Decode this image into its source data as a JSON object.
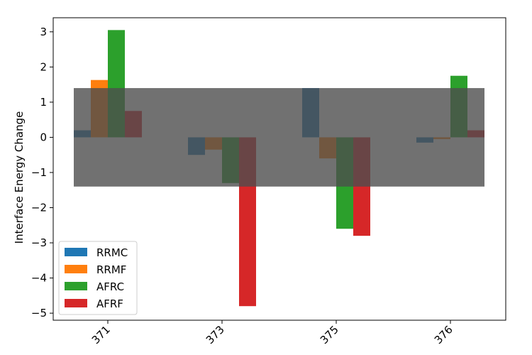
{
  "chart_data": {
    "type": "bar",
    "title": "",
    "xlabel": "",
    "ylabel": "Interface Energy Change",
    "categories": [
      "371",
      "373",
      "375",
      "376"
    ],
    "series": [
      {
        "name": "RRMC",
        "color": "#1f77b4",
        "values": [
          0.2,
          -0.5,
          1.4,
          -0.15
        ]
      },
      {
        "name": "RRMF",
        "color": "#ff7f0e",
        "values": [
          1.63,
          -0.35,
          -0.6,
          -0.05
        ]
      },
      {
        "name": "AFRC",
        "color": "#2ca02c",
        "values": [
          3.05,
          -1.3,
          -2.6,
          1.75
        ]
      },
      {
        "name": "AFRF",
        "color": "#d62728",
        "values": [
          0.75,
          -4.8,
          -2.8,
          0.2
        ]
      }
    ],
    "shaded_band": {
      "y_min": -1.4,
      "y_max": 1.4,
      "color": "#4d4d4d",
      "opacity": 0.8
    },
    "ylim": [
      -5.2,
      3.4
    ],
    "yticks": [
      3,
      2,
      1,
      0,
      -1,
      -2,
      -3,
      -4,
      -5
    ],
    "ytick_labels": [
      "3",
      "2",
      "1",
      "0",
      "−1",
      "−2",
      "−3",
      "−4",
      "−5"
    ],
    "xtick_rotation": 45,
    "legend_position": "lower-left",
    "grid": false
  }
}
